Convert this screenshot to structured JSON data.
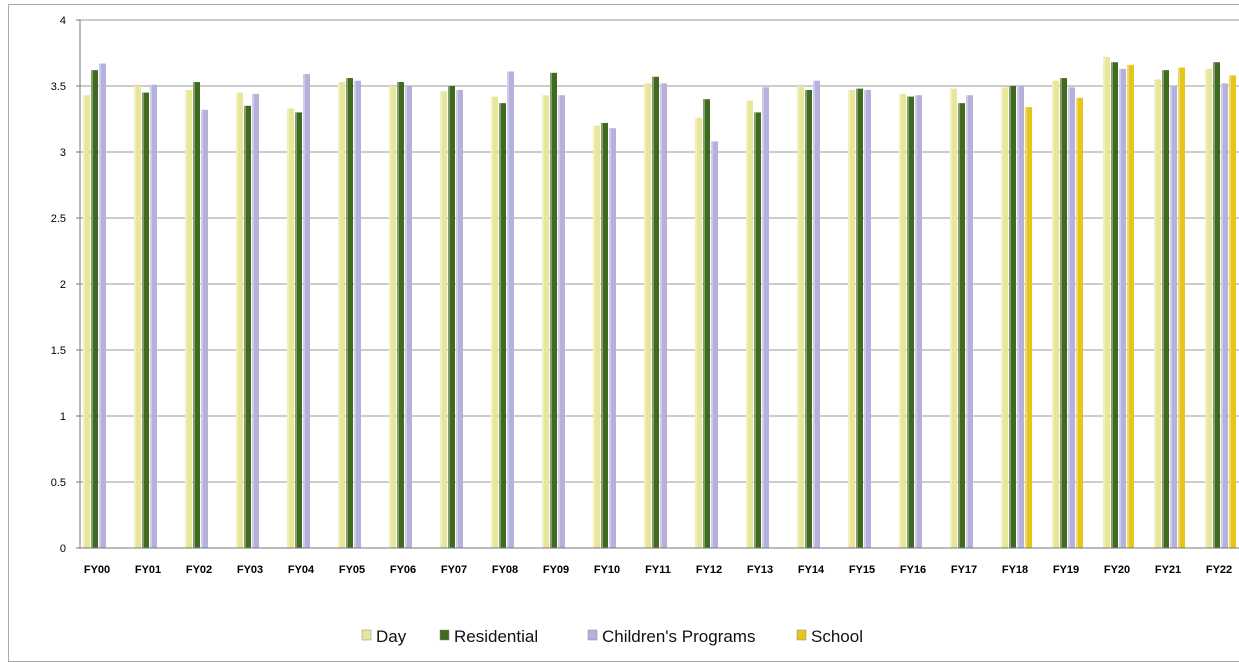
{
  "chart_data": {
    "type": "bar",
    "title": "",
    "xlabel": "",
    "ylabel": "",
    "ylim": [
      0,
      4
    ],
    "yticks": [
      "0",
      "0.5",
      "1",
      "1.5",
      "2",
      "2.5",
      "3",
      "3.5",
      "4"
    ],
    "grid": true,
    "legend_position": "bottom",
    "categories": [
      "FY00",
      "FY01",
      "FY02",
      "FY03",
      "FY04",
      "FY05",
      "FY06",
      "FY07",
      "FY08",
      "FY09",
      "FY10",
      "FY11",
      "FY12",
      "FY13",
      "FY14",
      "FY15",
      "FY16",
      "FY17",
      "FY18",
      "FY19",
      "FY20",
      "FY21",
      "FY22"
    ],
    "series": [
      {
        "name": "Day",
        "color": "#e8e69a",
        "values": [
          3.43,
          3.5,
          3.47,
          3.45,
          3.33,
          3.53,
          3.5,
          3.46,
          3.42,
          3.43,
          3.2,
          3.52,
          3.26,
          3.39,
          3.5,
          3.47,
          3.44,
          3.48,
          3.49,
          3.54,
          3.72,
          3.55,
          3.63
        ]
      },
      {
        "name": "Residential",
        "color": "#3f6a1f",
        "values": [
          3.62,
          3.45,
          3.53,
          3.35,
          3.3,
          3.56,
          3.53,
          3.5,
          3.37,
          3.6,
          3.22,
          3.57,
          3.4,
          3.3,
          3.47,
          3.48,
          3.42,
          3.37,
          3.5,
          3.56,
          3.68,
          3.62,
          3.68
        ]
      },
      {
        "name": "Children's Programs",
        "color": "#b6b0dc",
        "values": [
          3.67,
          3.51,
          3.32,
          3.44,
          3.59,
          3.54,
          3.5,
          3.47,
          3.61,
          3.43,
          3.18,
          3.52,
          3.08,
          3.49,
          3.54,
          3.47,
          3.43,
          3.43,
          3.5,
          3.49,
          3.63,
          3.5,
          3.52
        ]
      },
      {
        "name": "School",
        "color": "#e6c51c",
        "values": [
          null,
          null,
          null,
          null,
          null,
          null,
          null,
          null,
          null,
          null,
          null,
          null,
          null,
          null,
          null,
          null,
          null,
          null,
          3.34,
          3.41,
          3.66,
          3.64,
          3.58
        ]
      }
    ]
  }
}
